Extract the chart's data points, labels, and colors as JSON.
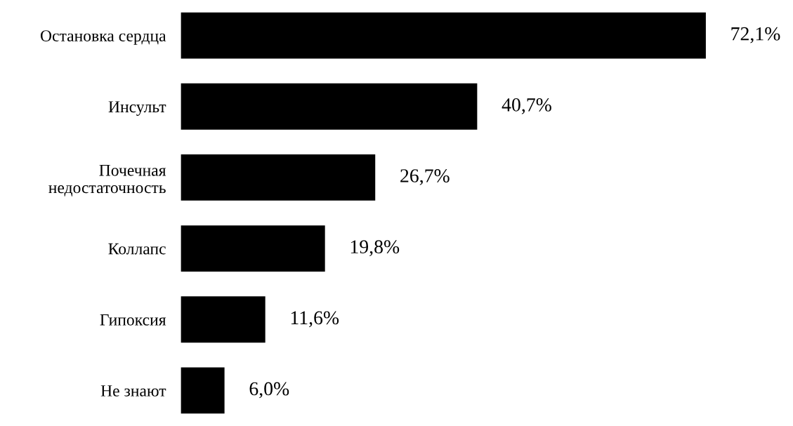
{
  "chart_data": {
    "type": "bar",
    "orientation": "horizontal",
    "categories": [
      "Остановка сердца",
      "Инсульт",
      "Почечная\nнедостаточность",
      "Коллапс",
      "Гипоксия",
      "Не знают"
    ],
    "values": [
      72.1,
      40.7,
      26.7,
      19.8,
      11.6,
      6.0
    ],
    "value_labels": [
      "72,1%",
      "40,7%",
      "26,7%",
      "19,8%",
      "11,6%",
      "6,0%"
    ],
    "color": "#000000"
  }
}
